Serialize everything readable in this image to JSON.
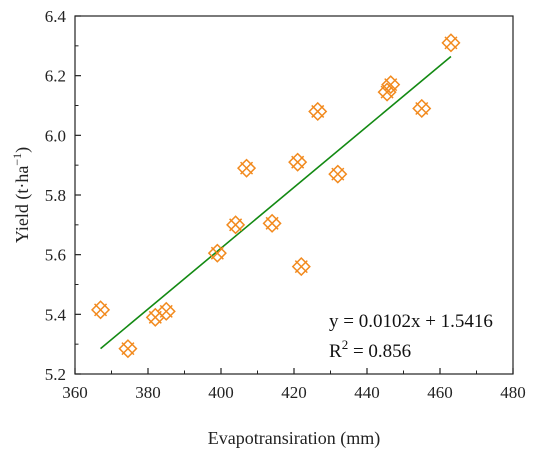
{
  "chart_data": {
    "type": "scatter",
    "title": "",
    "xlabel": "Evapotransiration (mm)",
    "ylabel_main": "Yield (t·ha",
    "ylabel_sup": "−1",
    "ylabel_close": ")",
    "xlim": [
      360,
      480
    ],
    "ylim": [
      5.2,
      6.4
    ],
    "xticks": [
      360,
      380,
      400,
      420,
      440,
      460,
      480
    ],
    "yticks": [
      5.2,
      5.4,
      5.6,
      5.8,
      6.0,
      6.2,
      6.4
    ],
    "xtick_labels": [
      "360",
      "380",
      "400",
      "420",
      "440",
      "460",
      "480"
    ],
    "ytick_labels": [
      "5.2",
      "5.4",
      "5.6",
      "5.8",
      "6.0",
      "6.2",
      "6.4"
    ],
    "grid": false,
    "marker_color": "#F28A1E",
    "line_color": "#138A13",
    "points": [
      {
        "x": 367,
        "y": 5.415
      },
      {
        "x": 374.5,
        "y": 5.285
      },
      {
        "x": 382,
        "y": 5.39
      },
      {
        "x": 385,
        "y": 5.41
      },
      {
        "x": 399,
        "y": 5.605
      },
      {
        "x": 404,
        "y": 5.7
      },
      {
        "x": 407,
        "y": 5.89
      },
      {
        "x": 414,
        "y": 5.705
      },
      {
        "x": 421,
        "y": 5.91
      },
      {
        "x": 422,
        "y": 5.56
      },
      {
        "x": 426.5,
        "y": 6.08
      },
      {
        "x": 432,
        "y": 5.87
      },
      {
        "x": 445.5,
        "y": 6.145
      },
      {
        "x": 446.5,
        "y": 6.17
      },
      {
        "x": 455,
        "y": 6.09
      },
      {
        "x": 463,
        "y": 6.31
      }
    ],
    "fit": {
      "slope": 0.0102,
      "intercept": 1.5416,
      "x_start": 367,
      "x_end": 463
    },
    "annotations": {
      "equation": "y = 0.0102x + 1.5416",
      "r2_main": "R",
      "r2_sup": "2",
      "r2_value": " = 0.856"
    }
  }
}
